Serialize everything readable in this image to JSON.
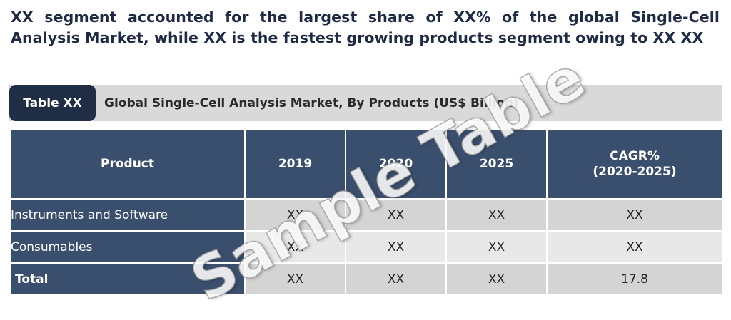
{
  "headline": "XX segment accounted for the largest share of XX% of the global Single-Cell Analysis Market, while XX is the fastest growing products segment owing to XX XX",
  "caption": {
    "tag": "Table XX",
    "title": "Global Single-Cell Analysis Market, By Products (US$ Billion)"
  },
  "table": {
    "headers": {
      "product": "Product",
      "y2019": "2019",
      "y2020": "2020",
      "y2025": "2025",
      "cagr_line1": "CAGR%",
      "cagr_line2": "(2020-2025)"
    },
    "rows": [
      {
        "label": "Instruments and Software",
        "v2019": "XX",
        "v2020": "XX",
        "v2025": "XX",
        "cagr": "XX"
      },
      {
        "label": "Consumables",
        "v2019": "XX",
        "v2020": "XX",
        "v2025": "XX",
        "cagr": "XX"
      },
      {
        "label": "Total",
        "v2019": "XX",
        "v2020": "XX",
        "v2025": "XX",
        "cagr": "17.8"
      }
    ]
  },
  "watermark": "Sample Table",
  "colors": {
    "header_bg": "#3a4f6d",
    "tag_bg": "#1f2d45",
    "caption_bar_bg": "#d9d9d9",
    "row_odd_bg": "#d4d4d4",
    "row_even_bg": "#e8e8e8",
    "headline_text": "#1f2a44"
  }
}
